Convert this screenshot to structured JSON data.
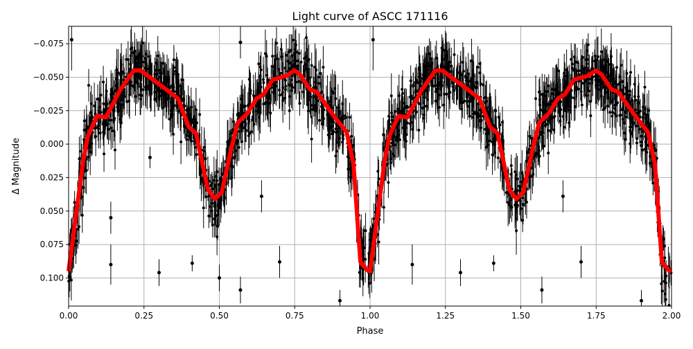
{
  "chart_data": {
    "type": "scatter",
    "title": "Light curve of ASCC 171116",
    "xlabel": "Phase",
    "ylabel": "Δ Magnitude",
    "xlim": [
      0,
      2
    ],
    "ylim": [
      0.121,
      -0.088
    ],
    "y_inverted": true,
    "grid": true,
    "xticks": [
      "0.00",
      "0.25",
      "0.50",
      "0.75",
      "1.00",
      "1.25",
      "1.50",
      "1.75",
      "2.00"
    ],
    "xtick_values": [
      0,
      0.25,
      0.5,
      0.75,
      1,
      1.25,
      1.5,
      1.75,
      2
    ],
    "yticks": [
      "−0.075",
      "−0.050",
      "−0.025",
      "0.000",
      "0.025",
      "0.050",
      "0.075",
      "0.100"
    ],
    "ytick_values": [
      -0.075,
      -0.05,
      -0.025,
      0,
      0.025,
      0.05,
      0.075,
      0.1
    ],
    "data_color": "#000000",
    "model_color": "#ff0000",
    "model_curve": {
      "phase": [
        0.0,
        0.048,
        0.064,
        0.094,
        0.124,
        0.17,
        0.216,
        0.239,
        0.317,
        0.363,
        0.398,
        0.423,
        0.462,
        0.485,
        0.508,
        0.538,
        0.561,
        0.593,
        0.623,
        0.646,
        0.676,
        0.722,
        0.749,
        0.768,
        0.8,
        0.823,
        0.883,
        0.922,
        0.945,
        0.968,
        0.99,
        1.0,
        1.048,
        1.064,
        1.094,
        1.124,
        1.17,
        1.216,
        1.239,
        1.317,
        1.363,
        1.398,
        1.423,
        1.462,
        1.485,
        1.508,
        1.538,
        1.561,
        1.593,
        1.623,
        1.646,
        1.676,
        1.722,
        1.749,
        1.768,
        1.8,
        1.823,
        1.883,
        1.922,
        1.945,
        1.968,
        1.99,
        2.0
      ],
      "mag": [
        0.095,
        0.013,
        -0.006,
        -0.021,
        -0.02,
        -0.04,
        -0.055,
        -0.055,
        -0.042,
        -0.034,
        -0.013,
        -0.008,
        0.034,
        0.041,
        0.036,
        0.005,
        -0.016,
        -0.023,
        -0.034,
        -0.037,
        -0.048,
        -0.051,
        -0.055,
        -0.052,
        -0.041,
        -0.039,
        -0.02,
        -0.009,
        0.015,
        0.088,
        0.094,
        0.095,
        0.013,
        -0.006,
        -0.021,
        -0.02,
        -0.04,
        -0.055,
        -0.055,
        -0.042,
        -0.034,
        -0.013,
        -0.008,
        0.034,
        0.041,
        0.036,
        0.005,
        -0.016,
        -0.023,
        -0.034,
        -0.037,
        -0.048,
        -0.051,
        -0.055,
        -0.052,
        -0.041,
        -0.039,
        -0.02,
        -0.009,
        0.015,
        0.088,
        0.094,
        0.095
      ]
    },
    "outliers": [
      {
        "phase": 0.01,
        "mag": -0.078,
        "err": 0.023
      },
      {
        "phase": 0.14,
        "mag": 0.055,
        "err": 0.012
      },
      {
        "phase": 0.14,
        "mag": 0.09,
        "err": 0.015
      },
      {
        "phase": 0.27,
        "mag": 0.01,
        "err": 0.008
      },
      {
        "phase": 0.3,
        "mag": 0.096,
        "err": 0.01
      },
      {
        "phase": 0.41,
        "mag": 0.089,
        "err": 0.006
      },
      {
        "phase": 0.5,
        "mag": 0.1,
        "err": 0.01
      },
      {
        "phase": 0.57,
        "mag": 0.109,
        "err": 0.01
      },
      {
        "phase": 0.57,
        "mag": -0.076,
        "err": 0.012
      },
      {
        "phase": 0.64,
        "mag": 0.039,
        "err": 0.012
      },
      {
        "phase": 0.7,
        "mag": 0.088,
        "err": 0.012
      },
      {
        "phase": 0.9,
        "mag": 0.117,
        "err": 0.008
      },
      {
        "phase": 1.01,
        "mag": -0.078,
        "err": 0.023
      },
      {
        "phase": 1.14,
        "mag": 0.09,
        "err": 0.015
      },
      {
        "phase": 1.3,
        "mag": 0.096,
        "err": 0.01
      },
      {
        "phase": 1.41,
        "mag": 0.089,
        "err": 0.006
      },
      {
        "phase": 1.57,
        "mag": 0.109,
        "err": 0.01
      },
      {
        "phase": 1.7,
        "mag": 0.088,
        "err": 0.012
      },
      {
        "phase": 1.9,
        "mag": 0.117,
        "err": 0.008
      },
      {
        "phase": 1.64,
        "mag": 0.039,
        "err": 0.012
      }
    ]
  }
}
